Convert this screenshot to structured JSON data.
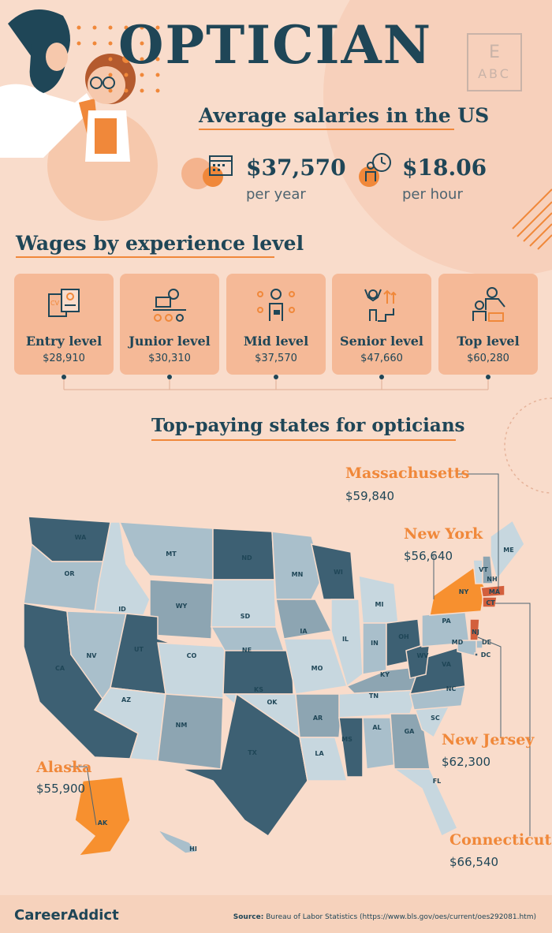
{
  "title": "OPTICIAN",
  "eye_chart": {
    "top_letter": "E",
    "row": "ABC"
  },
  "subtitle": "Average salaries in the US",
  "annual": {
    "amount": "$37,570",
    "unit": "per year"
  },
  "hourly": {
    "amount": "$18.06",
    "unit": "per hour"
  },
  "wages_heading": "Wages by experience level",
  "levels": [
    {
      "label": "Entry level",
      "value": "$28,910"
    },
    {
      "label": "Junior level",
      "value": "$30,310"
    },
    {
      "label": "Mid level",
      "value": "$37,570"
    },
    {
      "label": "Senior level",
      "value": "$47,660"
    },
    {
      "label": "Top level",
      "value": "$60,280"
    }
  ],
  "states_heading": "Top-paying states for opticians",
  "callouts": {
    "massachusetts": {
      "name": "Massachusetts",
      "value": "$59,840"
    },
    "new_york": {
      "name": "New York",
      "value": "$56,640"
    },
    "new_jersey": {
      "name": "New Jersey",
      "value": "$62,300"
    },
    "alaska": {
      "name": "Alaska",
      "value": "$55,900"
    },
    "connecticut": {
      "name": "Connecticut",
      "value": "$66,540"
    }
  },
  "map_labels": [
    "WA",
    "OR",
    "CA",
    "ID",
    "NV",
    "MT",
    "WY",
    "UT",
    "AZ",
    "CO",
    "NM",
    "ND",
    "SD",
    "NE",
    "KS",
    "OK",
    "TX",
    "MN",
    "IA",
    "MO",
    "AR",
    "LA",
    "WI",
    "IL",
    "MI",
    "IN",
    "OH",
    "KY",
    "TN",
    "MS",
    "AL",
    "GA",
    "FL",
    "SC",
    "NC",
    "VA",
    "WV",
    "PA",
    "NY",
    "VT",
    "NH",
    "ME",
    "MA",
    "CT",
    "NJ",
    "DE",
    "MD",
    "DC",
    "AK",
    "HI"
  ],
  "logo": "CareerAddict",
  "source_label": "Source:",
  "source_text": "Bureau of Labor Statistics (https://www.bls.gov/oes/current/oes292081.htm)",
  "colors": {
    "background": "#f9dccb",
    "navy": "#1f4657",
    "orange": "#f0883a",
    "card": "#f5b997"
  }
}
